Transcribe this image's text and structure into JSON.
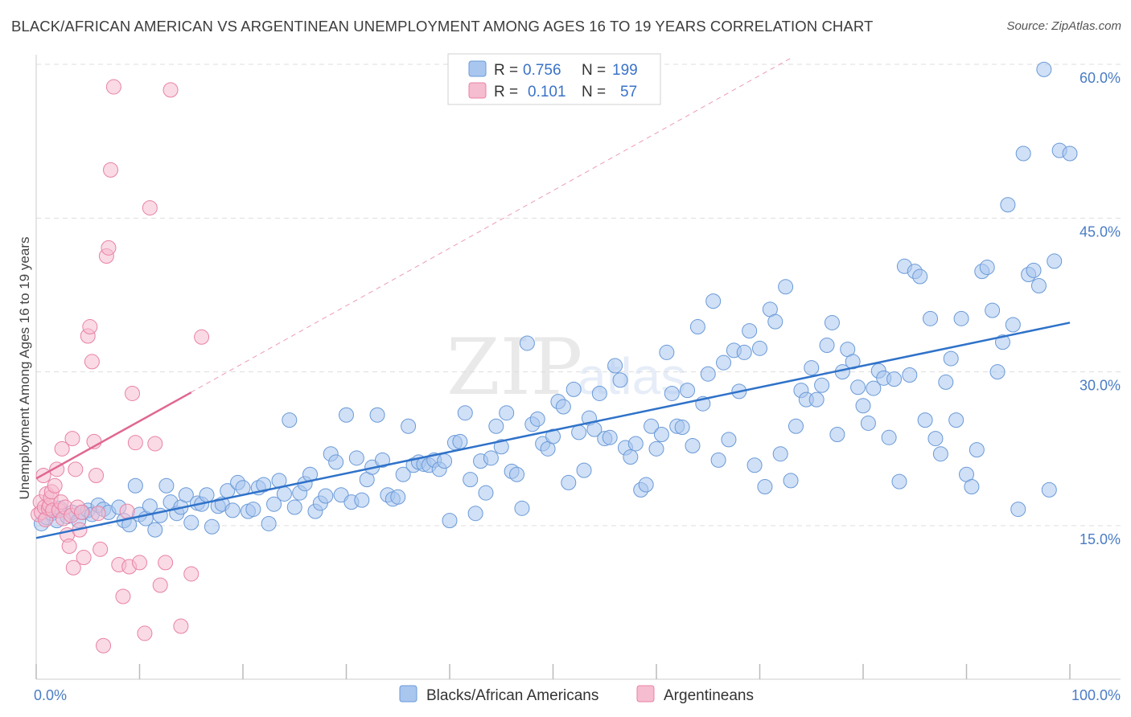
{
  "title": "BLACK/AFRICAN AMERICAN VS ARGENTINEAN UNEMPLOYMENT AMONG AGES 16 TO 19 YEARS CORRELATION CHART",
  "source": "Source: ZipAtlas.com",
  "watermark": {
    "zip": "ZIP",
    "atlas": "atlas"
  },
  "colors": {
    "blue_fill": "#a9c6ef",
    "blue_stroke": "#6a9ad8",
    "blue_line": "#2f72c9",
    "pink_fill": "#f6bcd0",
    "pink_stroke": "#e882a5",
    "pink_line": "#e06792",
    "grid": "#dddddd",
    "tick_label": "#4a7cc4"
  },
  "chart_data": {
    "type": "scatter",
    "title": "BLACK/AFRICAN AMERICAN VS ARGENTINEAN UNEMPLOYMENT AMONG AGES 16 TO 19 YEARS CORRELATION CHART",
    "xlabel": "",
    "ylabel": "Unemployment Among Ages 16 to 19 years",
    "xlim": [
      0,
      100
    ],
    "ylim": [
      0,
      62
    ],
    "x_ticks": [
      0,
      10,
      20,
      30,
      40,
      50,
      60,
      70,
      80,
      90,
      100
    ],
    "x_tick_labels": [
      {
        "value": 0,
        "label": "0.0%"
      },
      {
        "value": 100,
        "label": "100.0%"
      }
    ],
    "y_ticks": [
      {
        "value": 15,
        "label": "15.0%"
      },
      {
        "value": 30,
        "label": "30.0%"
      },
      {
        "value": 45,
        "label": "45.0%"
      },
      {
        "value": 60,
        "label": "60.0%"
      }
    ],
    "grid": true,
    "legend_placement": "top-center",
    "legend": [
      {
        "r_label": "R =",
        "r": "0.756",
        "n_label": "N =",
        "n": "199"
      },
      {
        "r_label": "R =",
        "r": "0.101",
        "n_label": "N =",
        "n": "57"
      }
    ],
    "series": [
      {
        "name": "Blacks/African Americans",
        "color": "#a9c6ef",
        "trend": {
          "x": [
            0,
            100
          ],
          "y": [
            13.8,
            34.8
          ],
          "style": "solid"
        },
        "points": [
          [
            0.5,
            15.2
          ],
          [
            1,
            15.8
          ],
          [
            1.5,
            16.2
          ],
          [
            2,
            15.5
          ],
          [
            2.3,
            16.7
          ],
          [
            3,
            15.9
          ],
          [
            3.5,
            16.3
          ],
          [
            4.1,
            15.5
          ],
          [
            4.5,
            16.3
          ],
          [
            5,
            16.5
          ],
          [
            5.4,
            16.1
          ],
          [
            6,
            17
          ],
          [
            6.5,
            16.6
          ],
          [
            7,
            16.3
          ],
          [
            8,
            16.8
          ],
          [
            8.5,
            15.5
          ],
          [
            9,
            15.1
          ],
          [
            9.6,
            18.9
          ],
          [
            10,
            16.1
          ],
          [
            10.6,
            15.7
          ],
          [
            11,
            16.9
          ],
          [
            11.5,
            14.6
          ],
          [
            12,
            16
          ],
          [
            12.6,
            18.9
          ],
          [
            13,
            17.3
          ],
          [
            13.6,
            16.2
          ],
          [
            14,
            16.8
          ],
          [
            14.5,
            18
          ],
          [
            15,
            15.3
          ],
          [
            15.6,
            17.2
          ],
          [
            16,
            17.1
          ],
          [
            16.5,
            18
          ],
          [
            17,
            14.9
          ],
          [
            17.6,
            16.9
          ],
          [
            18,
            17.1
          ],
          [
            18.5,
            18.4
          ],
          [
            19,
            16.5
          ],
          [
            19.5,
            19.2
          ],
          [
            20,
            18.7
          ],
          [
            20.5,
            16.4
          ],
          [
            21,
            16.6
          ],
          [
            21.5,
            18.7
          ],
          [
            22,
            19
          ],
          [
            22.5,
            15.2
          ],
          [
            23,
            17.1
          ],
          [
            23.5,
            19.4
          ],
          [
            24,
            18.1
          ],
          [
            24.5,
            25.3
          ],
          [
            25,
            16.8
          ],
          [
            25.5,
            18.2
          ],
          [
            26,
            19.1
          ],
          [
            26.5,
            20
          ],
          [
            27,
            16.4
          ],
          [
            27.5,
            17.2
          ],
          [
            28,
            17.9
          ],
          [
            28.5,
            22
          ],
          [
            29,
            21.2
          ],
          [
            29.5,
            18
          ],
          [
            30,
            25.8
          ],
          [
            30.5,
            17.3
          ],
          [
            31,
            21.6
          ],
          [
            31.5,
            17.5
          ],
          [
            32,
            19.5
          ],
          [
            32.5,
            20.7
          ],
          [
            33,
            25.8
          ],
          [
            33.5,
            21.4
          ],
          [
            34,
            18
          ],
          [
            34.5,
            17.6
          ],
          [
            35,
            17.8
          ],
          [
            35.5,
            20
          ],
          [
            36,
            24.7
          ],
          [
            36.5,
            20.9
          ],
          [
            37,
            21.2
          ],
          [
            37.5,
            21
          ],
          [
            38,
            20.9
          ],
          [
            38.5,
            21.4
          ],
          [
            39,
            20.5
          ],
          [
            39.5,
            21.3
          ],
          [
            40,
            15.5
          ],
          [
            40.5,
            23.1
          ],
          [
            41,
            23.2
          ],
          [
            41.5,
            26
          ],
          [
            42,
            19.5
          ],
          [
            42.5,
            16.2
          ],
          [
            43,
            21.3
          ],
          [
            43.5,
            18.2
          ],
          [
            44,
            21.6
          ],
          [
            44.5,
            24.7
          ],
          [
            45,
            22.7
          ],
          [
            45.5,
            26
          ],
          [
            46,
            20.3
          ],
          [
            46.5,
            20
          ],
          [
            47,
            16.7
          ],
          [
            47.5,
            32.8
          ],
          [
            48,
            24.9
          ],
          [
            48.5,
            25.4
          ],
          [
            49,
            23
          ],
          [
            49.5,
            22.5
          ],
          [
            50,
            23.7
          ],
          [
            50.5,
            27.1
          ],
          [
            51,
            26.6
          ],
          [
            51.5,
            19.2
          ],
          [
            52,
            28.3
          ],
          [
            52.5,
            24.1
          ],
          [
            53,
            20.4
          ],
          [
            53.5,
            25.5
          ],
          [
            54,
            24.4
          ],
          [
            54.5,
            27.9
          ],
          [
            55,
            23.5
          ],
          [
            55.5,
            23.6
          ],
          [
            56,
            30.6
          ],
          [
            56.5,
            29.2
          ],
          [
            57,
            22.6
          ],
          [
            57.5,
            21.7
          ],
          [
            58,
            23
          ],
          [
            58.5,
            18.5
          ],
          [
            59,
            19
          ],
          [
            59.5,
            24.7
          ],
          [
            60,
            22.5
          ],
          [
            60.5,
            23.9
          ],
          [
            61,
            31.9
          ],
          [
            61.5,
            27.9
          ],
          [
            62,
            24.7
          ],
          [
            62.5,
            24.6
          ],
          [
            63,
            28.2
          ],
          [
            63.5,
            22.8
          ],
          [
            64,
            34.4
          ],
          [
            64.5,
            26.9
          ],
          [
            65,
            29.8
          ],
          [
            65.5,
            36.9
          ],
          [
            66,
            21.4
          ],
          [
            66.5,
            30.9
          ],
          [
            67,
            23.4
          ],
          [
            67.5,
            32.1
          ],
          [
            68,
            28.1
          ],
          [
            68.5,
            31.9
          ],
          [
            69,
            34
          ],
          [
            69.5,
            20.9
          ],
          [
            70,
            32.3
          ],
          [
            70.5,
            18.8
          ],
          [
            71,
            36.1
          ],
          [
            71.5,
            34.9
          ],
          [
            72,
            22
          ],
          [
            72.5,
            38.3
          ],
          [
            73,
            19.4
          ],
          [
            73.5,
            24.7
          ],
          [
            74,
            28.2
          ],
          [
            74.5,
            27.3
          ],
          [
            75,
            30.4
          ],
          [
            75.5,
            27.3
          ],
          [
            76,
            28.7
          ],
          [
            76.5,
            32.6
          ],
          [
            77,
            34.8
          ],
          [
            77.5,
            23.9
          ],
          [
            78,
            30
          ],
          [
            78.5,
            32.2
          ],
          [
            79,
            31
          ],
          [
            79.5,
            28.5
          ],
          [
            80,
            26.7
          ],
          [
            80.5,
            25
          ],
          [
            81,
            28.4
          ],
          [
            81.5,
            30.1
          ],
          [
            82,
            29.4
          ],
          [
            82.5,
            23.6
          ],
          [
            83,
            29.3
          ],
          [
            83.5,
            19.3
          ],
          [
            84,
            40.3
          ],
          [
            84.5,
            29.7
          ],
          [
            85,
            39.8
          ],
          [
            85.5,
            39.3
          ],
          [
            86,
            25.3
          ],
          [
            86.5,
            35.2
          ],
          [
            87,
            23.5
          ],
          [
            87.5,
            22
          ],
          [
            88,
            29
          ],
          [
            88.5,
            31.3
          ],
          [
            89,
            25.3
          ],
          [
            89.5,
            35.2
          ],
          [
            90,
            20
          ],
          [
            90.5,
            18.8
          ],
          [
            91,
            22.4
          ],
          [
            91.5,
            39.8
          ],
          [
            92,
            40.2
          ],
          [
            92.5,
            36
          ],
          [
            93,
            30
          ],
          [
            93.5,
            32.9
          ],
          [
            94,
            46.3
          ],
          [
            94.5,
            34.6
          ],
          [
            95,
            16.6
          ],
          [
            95.5,
            51.3
          ],
          [
            96,
            39.5
          ],
          [
            96.5,
            39.9
          ],
          [
            97,
            38.4
          ],
          [
            97.5,
            59.5
          ],
          [
            98,
            18.5
          ],
          [
            98.5,
            40.8
          ],
          [
            99,
            51.6
          ],
          [
            100,
            51.3
          ]
        ]
      },
      {
        "name": "Argentineans",
        "color": "#f6bcd0",
        "trend": {
          "x": [
            0,
            15
          ],
          "y": [
            19.6,
            28
          ],
          "style": "solid",
          "extended_x": [
            0,
            73
          ],
          "extended_y": [
            19.6,
            60.6
          ],
          "extended_style": "dashed"
        },
        "points": [
          [
            0.2,
            16.1
          ],
          [
            0.4,
            17.3
          ],
          [
            0.5,
            16.3
          ],
          [
            0.7,
            19.9
          ],
          [
            0.8,
            16.8
          ],
          [
            0.9,
            15.6
          ],
          [
            1,
            18.1
          ],
          [
            1.2,
            16.7
          ],
          [
            1.3,
            17
          ],
          [
            1.4,
            17.7
          ],
          [
            1.5,
            18.3
          ],
          [
            1.6,
            16.5
          ],
          [
            1.8,
            18.9
          ],
          [
            2,
            20.5
          ],
          [
            2.2,
            16.5
          ],
          [
            2.4,
            17.3
          ],
          [
            2.6,
            15.7
          ],
          [
            2.8,
            16.8
          ],
          [
            3,
            14.1
          ],
          [
            3.2,
            13
          ],
          [
            3.4,
            16
          ],
          [
            3.6,
            10.9
          ],
          [
            3.8,
            20.5
          ],
          [
            4,
            16.8
          ],
          [
            4.2,
            14.6
          ],
          [
            4.4,
            16.3
          ],
          [
            4.6,
            11.9
          ],
          [
            5,
            33.5
          ],
          [
            5.2,
            34.4
          ],
          [
            5.4,
            31
          ],
          [
            5.6,
            23.2
          ],
          [
            5.8,
            19.9
          ],
          [
            6,
            16.2
          ],
          [
            6.2,
            12.7
          ],
          [
            6.5,
            3.3
          ],
          [
            6.8,
            41.3
          ],
          [
            7,
            42.1
          ],
          [
            7.2,
            49.7
          ],
          [
            7.5,
            57.8
          ],
          [
            8,
            11.2
          ],
          [
            8.4,
            8.1
          ],
          [
            8.8,
            16.4
          ],
          [
            9,
            11
          ],
          [
            9.3,
            27.9
          ],
          [
            9.6,
            23.1
          ],
          [
            10,
            11.4
          ],
          [
            10.5,
            4.5
          ],
          [
            11,
            46
          ],
          [
            11.5,
            23
          ],
          [
            12,
            9.2
          ],
          [
            12.5,
            11.4
          ],
          [
            13,
            57.5
          ],
          [
            14,
            5.2
          ],
          [
            15,
            10.3
          ],
          [
            16,
            33.4
          ],
          [
            2.5,
            22.5
          ],
          [
            3.5,
            23.5
          ]
        ]
      }
    ]
  }
}
